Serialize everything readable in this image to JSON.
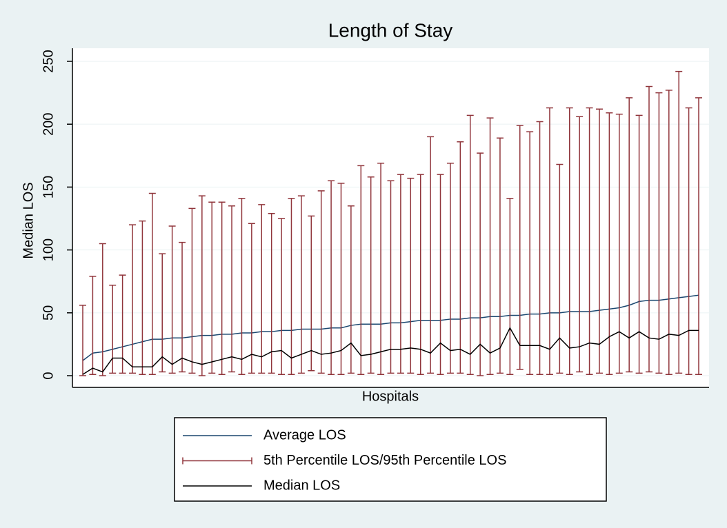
{
  "chart_data": {
    "type": "line",
    "title": "Length of Stay",
    "xlabel": "Hospitals",
    "ylabel": "Median LOS",
    "ylim": [
      -9.3,
      260.4
    ],
    "yticks": [
      0,
      50,
      100,
      150,
      200,
      250
    ],
    "grid": true,
    "legend": "bottom",
    "series": [
      {
        "name": "Average LOS",
        "color": "#1a476f",
        "values": [
          12,
          18,
          19,
          21,
          23,
          25,
          27,
          29,
          29,
          30,
          30,
          31,
          32,
          32,
          33,
          33,
          34,
          34,
          35,
          35,
          36,
          36,
          37,
          37,
          37,
          38,
          38,
          40,
          41,
          41,
          41,
          42,
          42,
          43,
          44,
          44,
          44,
          45,
          45,
          46,
          46,
          47,
          47,
          48,
          48,
          49,
          49,
          50,
          50,
          51,
          51,
          51,
          52,
          53,
          54,
          56,
          59,
          60,
          60,
          61,
          62,
          63,
          64
        ]
      },
      {
        "name": "5th Percentile LOS/95th Percentile LOS",
        "color": "#90353b",
        "kind": "rcap",
        "low": [
          0,
          1,
          0,
          2,
          2,
          2,
          1,
          1,
          3,
          2,
          3,
          2,
          0,
          2,
          1,
          3,
          1,
          2,
          2,
          2,
          1,
          1,
          2,
          4,
          2,
          1,
          1,
          2,
          1,
          2,
          1,
          2,
          2,
          2,
          1,
          2,
          1,
          2,
          2,
          1,
          0,
          1,
          2,
          1,
          5,
          1,
          1,
          1,
          2,
          1,
          3,
          1,
          2,
          1,
          2,
          3,
          2,
          3,
          2,
          1,
          2,
          1,
          1
        ],
        "high": [
          56,
          79,
          105,
          72,
          80,
          120,
          123,
          145,
          97,
          119,
          106,
          133,
          143,
          138,
          138,
          135,
          141,
          121,
          136,
          129,
          125,
          141,
          143,
          127,
          147,
          155,
          153,
          135,
          167,
          158,
          169,
          155,
          160,
          157,
          160,
          190,
          160,
          169,
          186,
          207,
          177,
          205,
          189,
          141,
          199,
          194,
          202,
          213,
          168,
          213,
          206,
          213,
          212,
          209,
          208,
          221,
          207,
          230,
          225,
          227,
          242,
          213,
          221
        ]
      },
      {
        "name": "Median LOS",
        "color": "#000000",
        "values": [
          1,
          6,
          3,
          14,
          14,
          7,
          7,
          7,
          15,
          9,
          14,
          11,
          9,
          11,
          13,
          15,
          13,
          17,
          15,
          19,
          20,
          14,
          17,
          20,
          17,
          18,
          20,
          26,
          16,
          17,
          19,
          21,
          21,
          22,
          21,
          18,
          26,
          20,
          21,
          17,
          25,
          18,
          22,
          38,
          24,
          24,
          24,
          21,
          30,
          22,
          23,
          26,
          25,
          31,
          35,
          30,
          35,
          30,
          29,
          33,
          32,
          36,
          36
        ]
      }
    ]
  }
}
